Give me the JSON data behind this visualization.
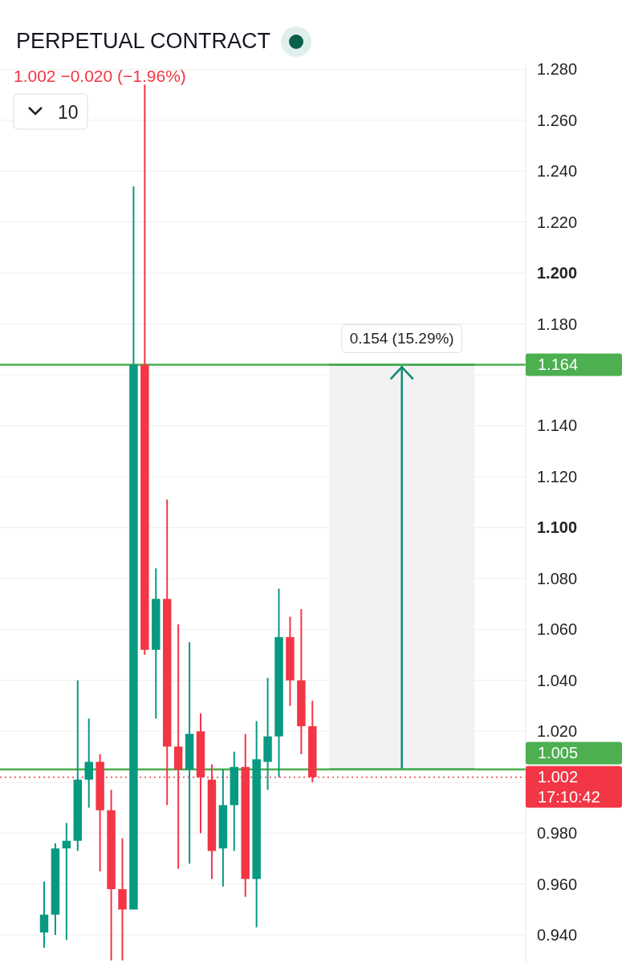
{
  "chart_data": {
    "type": "candlestick",
    "title": "PERPETUAL CONTRACT",
    "subtitle": "1.002  −0.020 (−1.96%)",
    "categories": [
      null,
      null,
      null,
      null,
      null,
      null,
      null,
      null,
      null,
      null,
      null,
      null,
      null,
      null,
      null,
      null,
      null,
      null,
      null,
      null,
      null,
      null,
      null,
      null,
      null,
      null,
      null,
      null,
      null,
      null,
      null,
      null,
      null,
      null,
      null,
      null,
      null,
      null,
      null,
      null,
      null,
      null,
      null
    ],
    "ohlc": [
      [
        0.941,
        0.961,
        0.935,
        0.948
      ],
      [
        0.948,
        0.976,
        0.94,
        0.974
      ],
      [
        0.974,
        0.984,
        0.938,
        0.977
      ],
      [
        0.977,
        1.04,
        0.973,
        1.001
      ],
      [
        1.001,
        1.025,
        0.99,
        1.008
      ],
      [
        1.008,
        1.011,
        0.965,
        0.989
      ],
      [
        0.989,
        0.997,
        0.93,
        0.958
      ],
      [
        0.958,
        0.978,
        0.93,
        0.95
      ],
      [
        0.95,
        1.234,
        0.95,
        1.164
      ],
      [
        1.164,
        1.274,
        1.05,
        1.052
      ],
      [
        1.052,
        1.084,
        1.025,
        1.072
      ],
      [
        1.072,
        1.111,
        0.991,
        1.014
      ],
      [
        1.014,
        1.062,
        0.966,
        1.005
      ],
      [
        1.005,
        1.055,
        0.968,
        1.019
      ],
      [
        1.02,
        1.027,
        0.98,
        1.002
      ],
      [
        1.001,
        1.007,
        0.962,
        0.973
      ],
      [
        0.974,
        1.005,
        0.959,
        0.991
      ],
      [
        0.991,
        1.012,
        0.973,
        1.006
      ],
      [
        1.006,
        1.019,
        0.955,
        0.962
      ],
      [
        0.962,
        1.024,
        0.943,
        1.009
      ],
      [
        1.008,
        1.041,
        0.997,
        1.018
      ],
      [
        1.018,
        1.076,
        1.002,
        1.057
      ],
      [
        1.057,
        1.065,
        1.03,
        1.04
      ],
      [
        1.04,
        1.068,
        1.011,
        1.022
      ],
      [
        1.022,
        1.032,
        1.0,
        1.002
      ],
      null,
      null,
      null,
      null,
      null,
      null,
      null,
      null,
      null,
      null,
      null,
      null,
      null,
      null,
      null,
      null,
      null,
      null
    ],
    "colors": [
      "#089981",
      "#089981",
      "#089981",
      "#089981",
      "#089981",
      "#f23645",
      "#f23645",
      "#f23645",
      "#089981",
      "#f23645",
      "#089981",
      "#f23645",
      "#f23645",
      "#089981",
      "#f23645",
      "#f23645",
      "#089981",
      "#089981",
      "#f23645",
      "#089981",
      "#089981",
      "#089981",
      "#f23645",
      "#f23645",
      "#f23645",
      null,
      null,
      null,
      null,
      null,
      null,
      null,
      null,
      null,
      null,
      null,
      null,
      null,
      null,
      null,
      null,
      null,
      null
    ],
    "ylim": [
      0.929,
      1.282
    ],
    "yticks": [
      {
        "value": 0.94,
        "label": "0.940"
      },
      {
        "value": 0.96,
        "label": "0.960"
      },
      {
        "value": 0.98,
        "label": "0.980"
      },
      {
        "value": 1.0,
        "label": null
      },
      {
        "value": 1.02,
        "label": "1.020"
      },
      {
        "value": 1.04,
        "label": "1.040"
      },
      {
        "value": 1.06,
        "label": "1.060"
      },
      {
        "value": 1.08,
        "label": "1.080"
      },
      {
        "value": 1.1,
        "label": "1.100"
      },
      {
        "value": 1.12,
        "label": "1.120"
      },
      {
        "value": 1.14,
        "label": "1.140"
      },
      {
        "value": 1.16,
        "label": null
      },
      {
        "value": 1.18,
        "label": "1.180"
      },
      {
        "value": 1.2,
        "label": "1.200"
      },
      {
        "value": 1.22,
        "label": "1.220"
      },
      {
        "value": 1.24,
        "label": "1.240"
      },
      {
        "value": 1.26,
        "label": "1.260"
      },
      {
        "value": 1.28,
        "label": "1.280"
      }
    ],
    "grid": "y",
    "ref_lines": [
      {
        "axis": "y",
        "value": 1.164,
        "label": "1.164",
        "color": "#4caf50",
        "line_style": "solid"
      },
      {
        "axis": "y",
        "value": 1.005,
        "label": "1.005",
        "color": "#4caf50",
        "line_style": "solid"
      },
      {
        "axis": "y",
        "value": 1.002,
        "label": "1.002",
        "color": "#f23645",
        "line_style": "dotted"
      }
    ],
    "bands": [
      {
        "axis": "y",
        "from": 1.005,
        "to": 1.164,
        "label": "0.154 (15.29%)",
        "color": "#f2f2f2"
      }
    ],
    "annotations": [
      "17:10:42",
      "10"
    ]
  }
}
